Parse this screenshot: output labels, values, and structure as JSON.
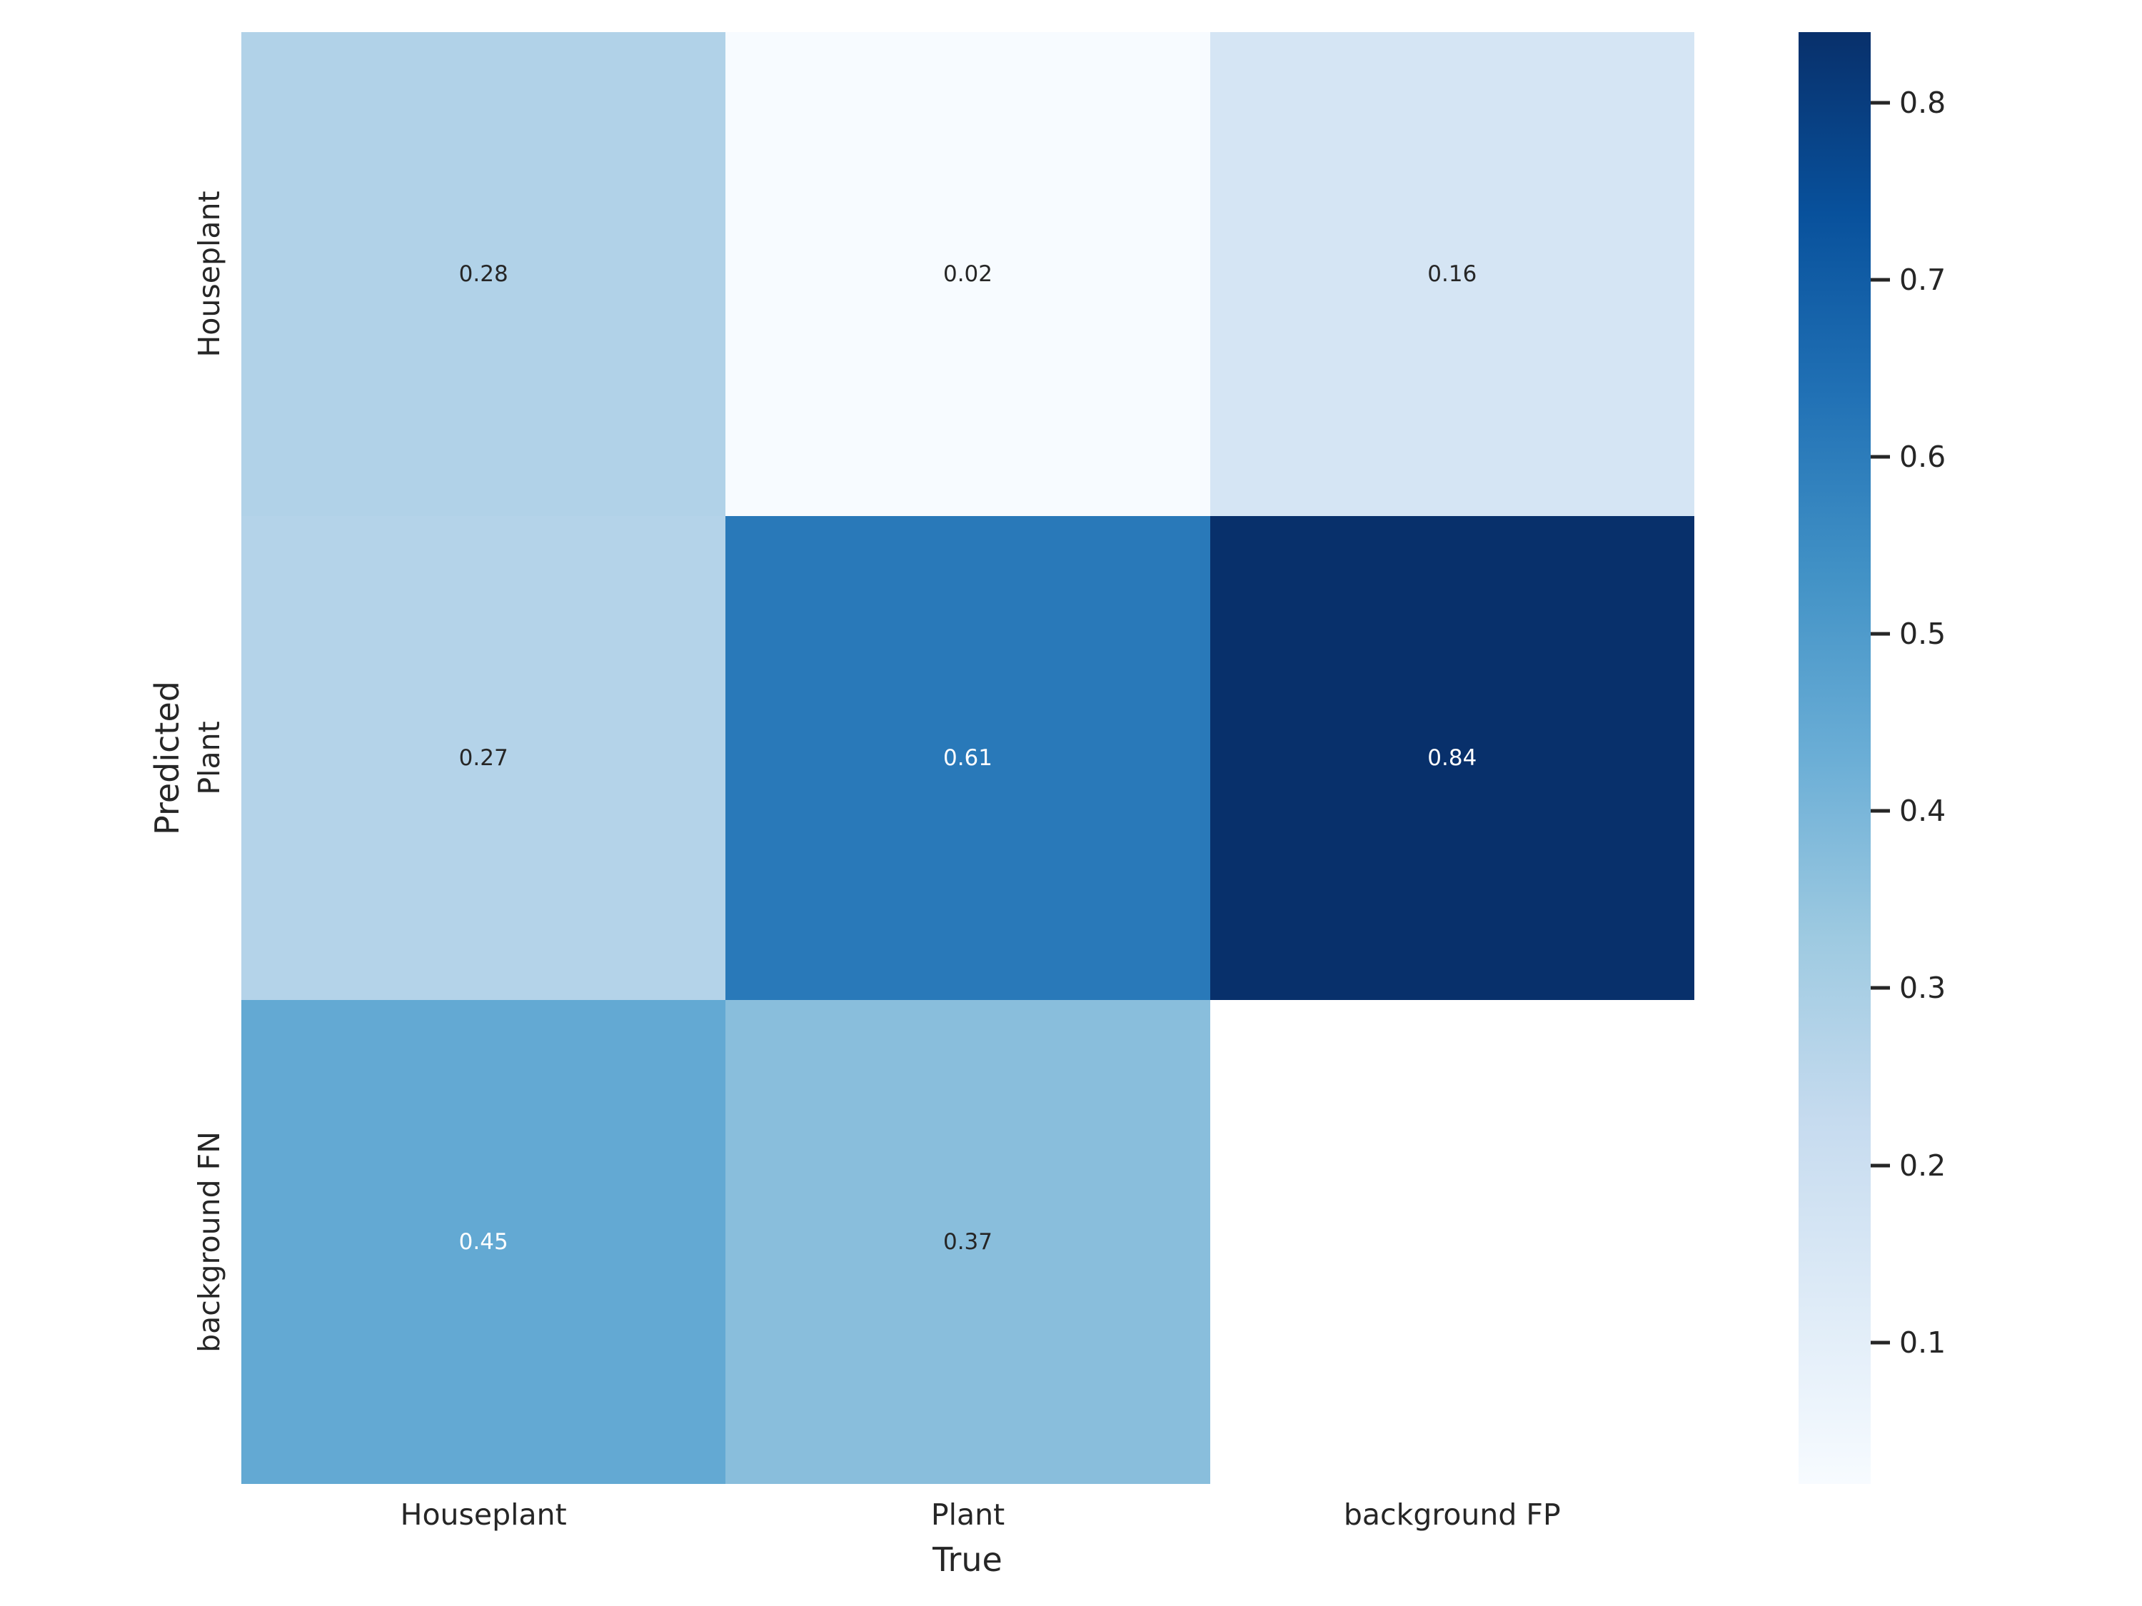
{
  "chart_data": {
    "type": "heatmap",
    "colormap": "Blues",
    "xlabel": "True",
    "ylabel": "Predicted",
    "x_categories": [
      "Houseplant",
      "Plant",
      "background FP"
    ],
    "y_categories": [
      "Houseplant",
      "Plant",
      "background FN"
    ],
    "values": [
      [
        0.28,
        0.02,
        0.16
      ],
      [
        0.27,
        0.61,
        0.84
      ],
      [
        0.45,
        0.37,
        null
      ]
    ],
    "cell_labels": [
      [
        "0.28",
        "0.02",
        "0.16"
      ],
      [
        "0.27",
        "0.61",
        "0.84"
      ],
      [
        "0.45",
        "0.37",
        ""
      ]
    ],
    "cell_colors": [
      [
        "#b1d2e8",
        "#f7fbff",
        "#d5e5f4"
      ],
      [
        "#b4d3e9",
        "#2979b9",
        "#08306b"
      ],
      [
        "#63a9d3",
        "#89bedc",
        "#ffffff"
      ]
    ],
    "cell_text_colors": [
      [
        "#262626",
        "#262626",
        "#262626"
      ],
      [
        "#262626",
        "#ffffff",
        "#ffffff"
      ],
      [
        "#ffffff",
        "#262626",
        "#262626"
      ]
    ],
    "grid": false,
    "colorbar": {
      "vmin": 0.02,
      "vmax": 0.84,
      "tick_values": [
        0.8,
        0.7,
        0.6,
        0.5,
        0.4,
        0.3,
        0.2,
        0.1
      ],
      "tick_labels": [
        "0.8",
        "0.7",
        "0.6",
        "0.5",
        "0.4",
        "0.3",
        "0.2",
        "0.1"
      ],
      "gradient_low_to_high": [
        "#f7fbff",
        "#deebf7",
        "#c6dbef",
        "#9ecae1",
        "#6baed6",
        "#4292c6",
        "#2171b5",
        "#08519c",
        "#08306b"
      ]
    },
    "text_color": "#262626",
    "background_color": "#ffffff"
  }
}
